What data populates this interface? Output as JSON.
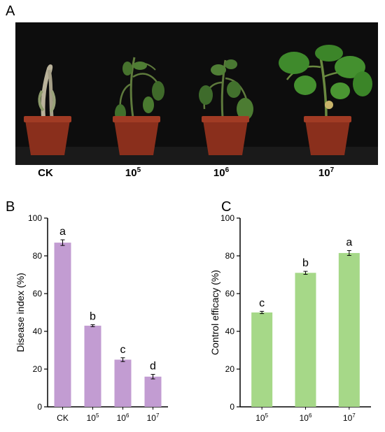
{
  "panel_a": {
    "letter": "A",
    "labels": [
      {
        "main": "CK",
        "sup": ""
      },
      {
        "main": "10",
        "sup": "5"
      },
      {
        "main": "10",
        "sup": "6"
      },
      {
        "main": "10",
        "sup": "7"
      }
    ]
  },
  "chart_data": [
    {
      "panel": "B",
      "type": "bar",
      "ylabel": "Disease index (%)",
      "ylim": [
        0,
        100
      ],
      "yticks": [
        0,
        20,
        40,
        60,
        80,
        100
      ],
      "categories": [
        {
          "main": "CK",
          "sup": ""
        },
        {
          "main": "10",
          "sup": "5"
        },
        {
          "main": "10",
          "sup": "6"
        },
        {
          "main": "10",
          "sup": "7"
        }
      ],
      "values": [
        87,
        43,
        25,
        16
      ],
      "errors": [
        1.5,
        0.5,
        1.0,
        1.2
      ],
      "significance": [
        "a",
        "b",
        "c",
        "d"
      ],
      "color": "#c29cd2"
    },
    {
      "panel": "C",
      "type": "bar",
      "ylabel": "Control efficacy (%)",
      "ylim": [
        0,
        100
      ],
      "yticks": [
        0,
        20,
        40,
        60,
        80,
        100
      ],
      "categories": [
        {
          "main": "10",
          "sup": "5"
        },
        {
          "main": "10",
          "sup": "6"
        },
        {
          "main": "10",
          "sup": "7"
        }
      ],
      "values": [
        50,
        71,
        81.5
      ],
      "errors": [
        0.6,
        0.8,
        1.3
      ],
      "significance": [
        "c",
        "b",
        "a"
      ],
      "color": "#a6d888"
    }
  ]
}
